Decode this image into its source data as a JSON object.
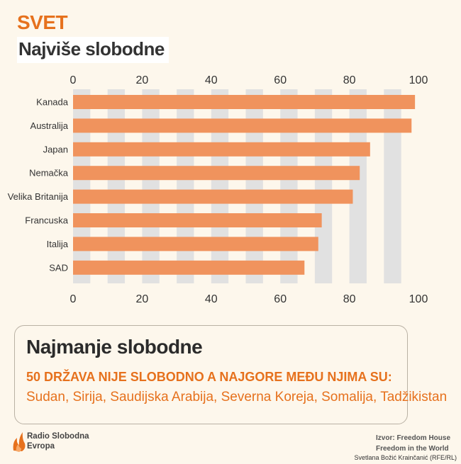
{
  "header": {
    "region": "SVET",
    "title": "Najviše slobodne"
  },
  "chart_data": {
    "type": "bar",
    "orientation": "horizontal",
    "categories": [
      "Kanada",
      "Australija",
      "Japan",
      "Nemačka",
      "Velika Britanija",
      "Francuska",
      "Italija",
      "SAD"
    ],
    "values": [
      99,
      98,
      86,
      83,
      81,
      72,
      71,
      67
    ],
    "xlim": [
      0,
      100
    ],
    "ticks": [
      "0",
      "20",
      "40",
      "60",
      "80",
      "100"
    ],
    "bar_color": "#f0935d",
    "stripe_color": "#e1e1e1"
  },
  "panel": {
    "title": "Najmanje slobodne",
    "headline": "50 DRŽAVA NIJE SLOBODNO A NAJGORE MEĐU NJIMA SU:",
    "countries": "Sudan, Sirija, Saudijska Arabija, Severna Koreja, Somalija, Tadžikistan"
  },
  "footer": {
    "logo_line1": "Radio Slobodna",
    "logo_line2": "Evropa",
    "source_line1": "Izvor: Freedom House",
    "source_line2": "Freedom in the World",
    "credit": "Svetlana Božić Krainčanić (RFE/RL)"
  },
  "colors": {
    "accent": "#e6711d",
    "background": "#fdf7ec"
  }
}
